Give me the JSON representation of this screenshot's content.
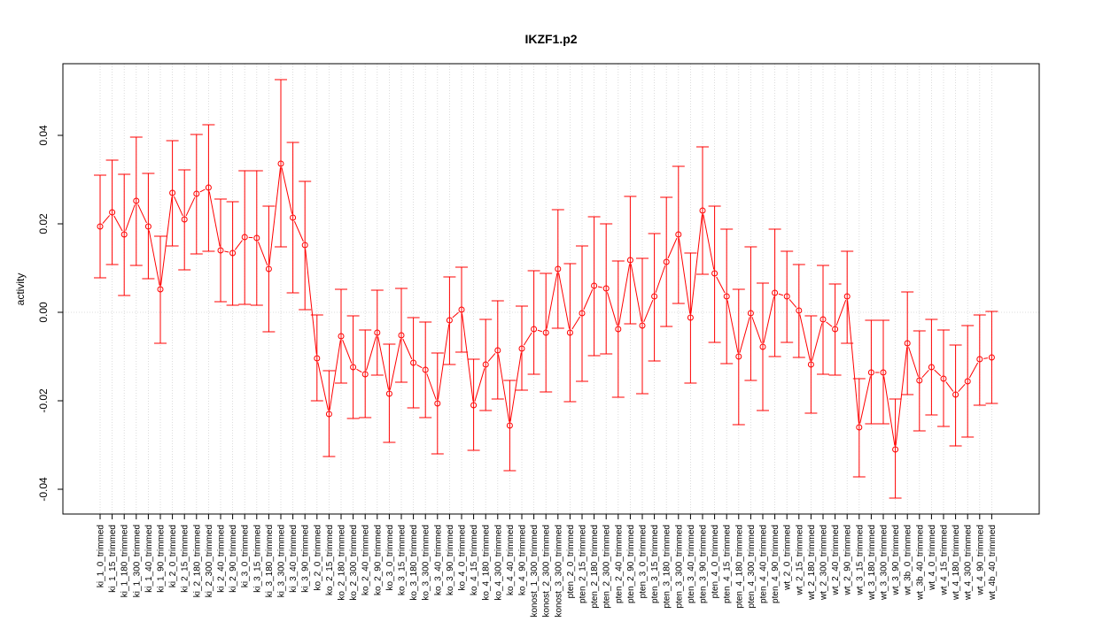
{
  "chart_data": {
    "type": "line",
    "title": "IKZF1.p2",
    "ylabel": "activity",
    "xlabel": "",
    "ylim": [
      -0.046,
      0.057
    ],
    "yticks": [
      -0.04,
      -0.02,
      0.0,
      0.02,
      0.04
    ],
    "ytick_labels": [
      "-0.04",
      "-0.02",
      "0.00",
      "0.02",
      "0.04"
    ],
    "grid": true,
    "series_color": "#ff0000",
    "grid_color": "#d3d3d3",
    "categories": [
      "ki_1_0_trimmed",
      "ki_1_15_trimmed",
      "ki_1_180_trimmed",
      "ki_1_300_trimmed",
      "ki_1_40_trimmed",
      "ki_1_90_trimmed",
      "ki_2_0_trimmed",
      "ki_2_15_trimmed",
      "ki_2_180_trimmed",
      "ki_2_300_trimmed",
      "ki_2_40_trimmed",
      "ki_2_90_trimmed",
      "ki_3_0_trimmed",
      "ki_3_15_trimmed",
      "ki_3_180_trimmed",
      "ki_3_300_trimmed",
      "ki_3_40_trimmed",
      "ki_3_90_trimmed",
      "ko_2_0_trimmed",
      "ko_2_15_trimmed",
      "ko_2_180_trimmed",
      "ko_2_300_trimmed",
      "ko_2_40_trimmed",
      "ko_2_90_trimmed",
      "ko_3_0_trimmed",
      "ko_3_15_trimmed",
      "ko_3_180_trimmed",
      "ko_3_300_trimmed",
      "ko_3_40_trimmed",
      "ko_3_90_trimmed",
      "ko_4_0_trimmed",
      "ko_4_15_trimmed",
      "ko_4_180_trimmed",
      "ko_4_300_trimmed",
      "ko_4_40_trimmed",
      "ko_4_90_trimmed",
      "konost_1_300_trimmed",
      "konost_2_300_trimmed",
      "konost_3_300_trimmed",
      "pten_2_0_trimmed",
      "pten_2_15_trimmed",
      "pten_2_180_trimmed",
      "pten_2_300_trimmed",
      "pten_2_40_trimmed",
      "pten_2_90_trimmed",
      "pten_3_0_trimmed",
      "pten_3_15_trimmed",
      "pten_3_180_trimmed",
      "pten_3_300_trimmed",
      "pten_3_40_trimmed",
      "pten_3_90_trimmed",
      "pten_4_0_trimmed",
      "pten_4_15_trimmed",
      "pten_4_180_trimmed",
      "pten_4_300_trimmed",
      "pten_4_40_trimmed",
      "pten_4_90_trimmed",
      "wt_2_0_trimmed",
      "wt_2_15_trimmed",
      "wt_2_180_trimmed",
      "wt_2_300_trimmed",
      "wt_2_40_trimmed",
      "wt_2_90_trimmed",
      "wt_3_15_trimmed",
      "wt_3_180_trimmed",
      "wt_3_300_trimmed",
      "wt_3_90_trimmed",
      "wt_3b_0_trimmed",
      "wt_3b_40_trimmed",
      "wt_4_0_trimmed",
      "wt_4_15_trimmed",
      "wt_4_180_trimmed",
      "wt_4_300_trimmed",
      "wt_4_90_trimmed",
      "wt_4b_40_trimmed"
    ],
    "values": [
      0.0194,
      0.0226,
      0.0176,
      0.0252,
      0.0194,
      0.0052,
      0.027,
      0.021,
      0.0268,
      0.0282,
      0.014,
      0.0134,
      0.017,
      0.0168,
      0.0098,
      0.0336,
      0.0214,
      0.0152,
      -0.0104,
      -0.023,
      -0.0054,
      -0.0124,
      -0.014,
      -0.0046,
      -0.0184,
      -0.0052,
      -0.0114,
      -0.013,
      -0.0206,
      -0.0018,
      0.0006,
      -0.021,
      -0.0118,
      -0.0086,
      -0.0256,
      -0.0082,
      -0.0038,
      -0.0046,
      0.0098,
      -0.0046,
      -0.0002,
      0.006,
      0.0054,
      -0.0038,
      0.0118,
      -0.003,
      0.0036,
      0.0114,
      0.0176,
      -0.0012,
      0.023,
      0.0088,
      0.0036,
      -0.01,
      -0.0002,
      -0.0078,
      0.0044,
      0.0036,
      0.0004,
      -0.0118,
      -0.0016,
      -0.0038,
      0.0036,
      -0.026,
      -0.0136,
      -0.0136,
      -0.031,
      -0.007,
      -0.0154,
      -0.0124,
      -0.015,
      -0.0186,
      -0.0156,
      -0.0106,
      -0.0102
    ],
    "err_lower": [
      0.0078,
      0.0108,
      0.0038,
      0.0106,
      0.0076,
      -0.007,
      0.015,
      0.0096,
      0.0132,
      0.0138,
      0.0024,
      0.0016,
      0.0018,
      0.0016,
      -0.0044,
      0.0148,
      0.0044,
      0.0006,
      -0.02,
      -0.0326,
      -0.016,
      -0.024,
      -0.0238,
      -0.0142,
      -0.0294,
      -0.0158,
      -0.0216,
      -0.0238,
      -0.032,
      -0.0118,
      -0.009,
      -0.0312,
      -0.0222,
      -0.0196,
      -0.0358,
      -0.0176,
      -0.014,
      -0.018,
      -0.0036,
      -0.0202,
      -0.0156,
      -0.0098,
      -0.0094,
      -0.0192,
      -0.0026,
      -0.0184,
      -0.011,
      -0.0032,
      0.002,
      -0.016,
      0.0086,
      -0.0068,
      -0.0116,
      -0.0254,
      -0.0154,
      -0.0222,
      -0.01,
      -0.0068,
      -0.0102,
      -0.0228,
      -0.014,
      -0.0142,
      -0.007,
      -0.0372,
      -0.0252,
      -0.0252,
      -0.042,
      -0.0186,
      -0.0268,
      -0.0232,
      -0.0258,
      -0.0302,
      -0.0282,
      -0.021,
      -0.0206
    ],
    "err_upper": [
      0.031,
      0.0344,
      0.0312,
      0.0396,
      0.0314,
      0.0172,
      0.0388,
      0.0322,
      0.0402,
      0.0424,
      0.0256,
      0.025,
      0.032,
      0.032,
      0.024,
      0.0526,
      0.0384,
      0.0296,
      -0.0006,
      -0.0132,
      0.0052,
      -0.0008,
      -0.004,
      0.005,
      -0.0072,
      0.0054,
      -0.0012,
      -0.0022,
      -0.0092,
      0.008,
      0.0102,
      -0.0106,
      -0.0016,
      0.0026,
      -0.0154,
      0.0014,
      0.0094,
      0.0088,
      0.0232,
      0.011,
      0.015,
      0.0216,
      0.02,
      0.0116,
      0.0262,
      0.0122,
      0.0178,
      0.026,
      0.033,
      0.0134,
      0.0374,
      0.024,
      0.0188,
      0.0052,
      0.0148,
      0.0066,
      0.0188,
      0.0138,
      0.0108,
      -0.0008,
      0.0106,
      0.0064,
      0.0138,
      -0.015,
      -0.0018,
      -0.0018,
      -0.0196,
      0.0046,
      -0.0042,
      -0.0016,
      -0.004,
      -0.0074,
      -0.003,
      -0.0006,
      0.0002
    ]
  }
}
